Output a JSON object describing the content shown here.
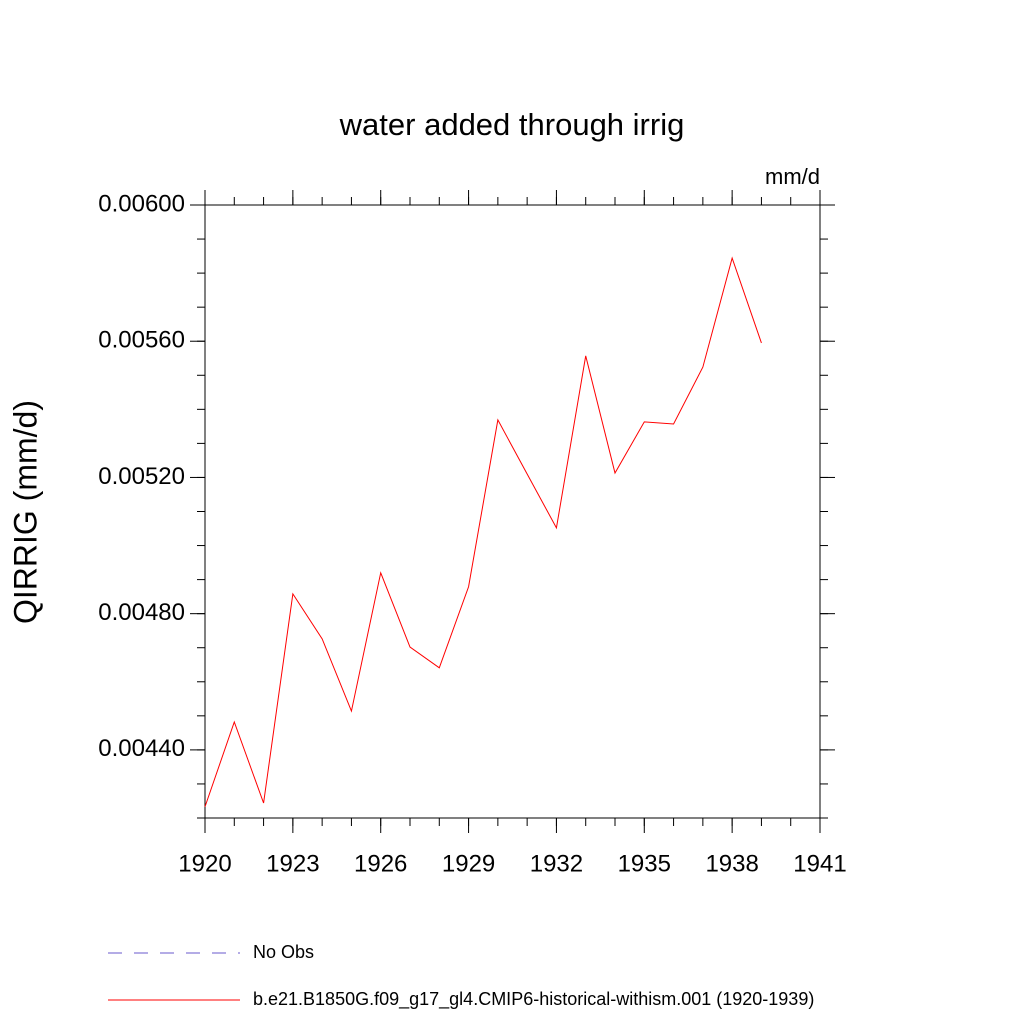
{
  "chart_data": {
    "type": "line",
    "title": "water added through irrig",
    "units": "mm/d",
    "ylabel": "QIRRIG  (mm/d)",
    "x": [
      1920,
      1921,
      1922,
      1923,
      1924,
      1925,
      1926,
      1927,
      1928,
      1929,
      1930,
      1931,
      1932,
      1933,
      1934,
      1935,
      1936,
      1937,
      1938,
      1939
    ],
    "series": [
      {
        "name": "No Obs",
        "color": "#6a5acd",
        "dash": true,
        "values": [
          null,
          null,
          null,
          null,
          null,
          null,
          null,
          null,
          null,
          null,
          null,
          null,
          null,
          null,
          null,
          null,
          null,
          null,
          null,
          null
        ]
      },
      {
        "name": "b.e21.B1850G.f09_g17_gl4.CMIP6-historical-withism.001 (1920-1939)",
        "color": "#ff0000",
        "dash": false,
        "values": [
          0.004233,
          0.004482,
          0.004244,
          0.004858,
          0.004726,
          0.004514,
          0.00492,
          0.004702,
          0.004641,
          0.004879,
          0.005369,
          0.00521,
          0.005052,
          0.005557,
          0.005213,
          0.005363,
          0.005357,
          0.005524,
          0.005844,
          0.005595
        ]
      }
    ],
    "xlim": [
      1920,
      1941
    ],
    "xticks": [
      1920,
      1923,
      1926,
      1929,
      1932,
      1935,
      1938,
      1941
    ],
    "ylim": [
      0.0042,
      0.006
    ],
    "yticks": [
      {
        "value": 0.0044,
        "label": "0.00440"
      },
      {
        "value": 0.0048,
        "label": "0.00480"
      },
      {
        "value": 0.0052,
        "label": "0.00520"
      },
      {
        "value": 0.0056,
        "label": "0.00560"
      },
      {
        "value": 0.006,
        "label": "0.00600"
      }
    ],
    "minor_ticks": {
      "x": 1,
      "y": 0.0001
    },
    "legend": "bottom"
  }
}
